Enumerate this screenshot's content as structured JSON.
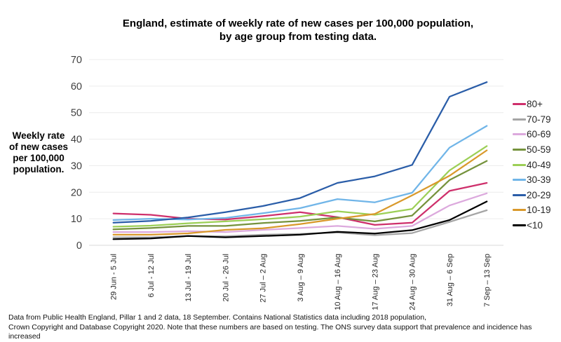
{
  "title": {
    "line1": "England, estimate of weekly rate of new cases per 100,000 population,",
    "line2": "by age group from testing data."
  },
  "y_axis_label": {
    "line1": "Weekly rate",
    "line2": "of new cases",
    "line3": "per 100,000",
    "line4": "population."
  },
  "footer": {
    "line1": "Data from Public Health England, Pillar 1 and 2 data, 18 September.  Contains National Statistics data including 2018 population,",
    "line2": "Crown Copyright and Database Copyright 2020. Note that these numbers are based on testing. The ONS survey data support that prevalence and incidence has increased"
  },
  "chart_data": {
    "type": "line",
    "title": "England, estimate of weekly rate of new cases per 100,000 population, by age group from testing data.",
    "xlabel": "",
    "ylabel": "Weekly rate of new cases per 100,000 population.",
    "ylim": [
      0,
      70
    ],
    "yticks": [
      0,
      10,
      20,
      30,
      40,
      50,
      60,
      70
    ],
    "grid": true,
    "legend_position": "right",
    "grid_color": "#ECECEC",
    "axis_line_color": "#D8D8D8",
    "ytick_text_color": "#404040",
    "xtick_text_color": "#262626",
    "categories": [
      "29 Jun - 5 Jul",
      "6 Jul - 12 Jul",
      "13 Jul - 19 Jul",
      "20 Jul - 26 Jul",
      "27 Jul – 2 Aug",
      "3 Aug – 9 Aug",
      "10 Aug – 16 Aug",
      "17 Aug – 23 Aug",
      "24 Aug – 30 Aug",
      "31 Aug – 6 Sep",
      "7 Sep – 13 Sep"
    ],
    "series": [
      {
        "name": "80+",
        "color": "#CE2F6B",
        "values": [
          12.0,
          11.5,
          10.0,
          9.7,
          11.0,
          12.5,
          10.6,
          7.7,
          8.5,
          20.5,
          23.5
        ]
      },
      {
        "name": "70-79",
        "color": "#A5A5A5",
        "values": [
          3.0,
          3.0,
          3.5,
          3.4,
          4.0,
          4.3,
          4.8,
          3.8,
          4.6,
          8.8,
          13.2
        ]
      },
      {
        "name": "60-69",
        "color": "#DCA9DD",
        "values": [
          5.0,
          5.0,
          5.3,
          5.0,
          5.8,
          6.5,
          7.3,
          6.2,
          7.3,
          15.0,
          19.6
        ]
      },
      {
        "name": "50-59",
        "color": "#75923C",
        "values": [
          6.0,
          6.5,
          7.3,
          7.3,
          8.4,
          9.2,
          10.5,
          9.0,
          11.2,
          24.6,
          31.8
        ]
      },
      {
        "name": "40-49",
        "color": "#9CCF56",
        "values": [
          7.0,
          7.4,
          8.3,
          9.0,
          9.8,
          10.8,
          12.8,
          11.5,
          13.7,
          28.2,
          37.4
        ]
      },
      {
        "name": "30-39",
        "color": "#70B5E8",
        "values": [
          9.5,
          10.0,
          9.7,
          10.3,
          12.1,
          14.0,
          17.4,
          16.2,
          19.8,
          36.8,
          45.0
        ]
      },
      {
        "name": "20-29",
        "color": "#2A5DA8",
        "values": [
          8.5,
          9.2,
          10.5,
          12.5,
          14.8,
          17.8,
          23.5,
          26.0,
          30.3,
          56.0,
          61.5
        ]
      },
      {
        "name": "10-19",
        "color": "#D9992B",
        "values": [
          4.0,
          4.0,
          4.5,
          5.8,
          6.4,
          8.0,
          10.0,
          11.8,
          18.8,
          26.2,
          35.8
        ]
      },
      {
        "name": "<10",
        "color": "#000000",
        "values": [
          2.3,
          2.6,
          3.5,
          3.0,
          3.5,
          4.0,
          5.1,
          4.4,
          5.7,
          9.5,
          16.5
        ]
      }
    ]
  }
}
